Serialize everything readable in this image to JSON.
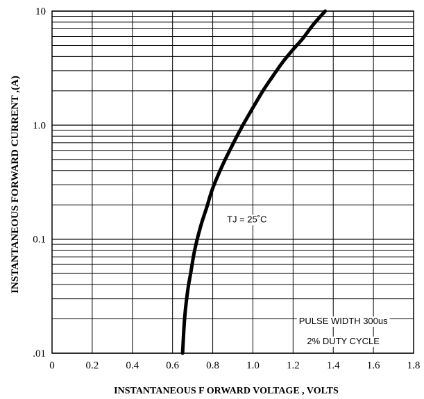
{
  "chart_data": {
    "type": "line",
    "title": "",
    "xlabel": "INSTANTANEOUS F ORWARD VOLTAGE , VOLTS",
    "ylabel": "INSTANTANEOUS  FORWARD CURRENT ,(A)",
    "x_scale": "linear",
    "y_scale": "log",
    "xlim": [
      0,
      1.8
    ],
    "ylim": [
      0.01,
      10
    ],
    "grid": true,
    "x_ticks": [
      0,
      0.2,
      0.4,
      0.6,
      0.8,
      1.0,
      1.2,
      1.4,
      1.6,
      1.8
    ],
    "x_tick_labels": [
      "0",
      "0.2",
      "0.4",
      "0.6",
      "0.8",
      "1.0",
      "1.2",
      "1.4",
      "1.6",
      "1.8"
    ],
    "y_ticks": [
      0.01,
      0.1,
      1,
      10
    ],
    "y_tick_labels": [
      ".01",
      "0.1",
      "1.0",
      "10"
    ],
    "series": [
      {
        "x": [
          0.65,
          0.66,
          0.675,
          0.69,
          0.71,
          0.74,
          0.77,
          0.8,
          0.85,
          0.9,
          0.95,
          1.0,
          1.05,
          1.1,
          1.15,
          1.2,
          1.25,
          1.3,
          1.36
        ],
        "y": [
          0.01,
          0.02,
          0.035,
          0.05,
          0.08,
          0.13,
          0.19,
          0.28,
          0.45,
          0.68,
          1.0,
          1.42,
          2.0,
          2.7,
          3.6,
          4.6,
          5.8,
          7.6,
          10.0
        ]
      }
    ],
    "annotations": [
      {
        "text": "TJ = 25˚C",
        "x": 0.97,
        "y": 0.14
      },
      {
        "text": "PULSE WIDTH 300us",
        "x": 1.45,
        "y": 0.018
      },
      {
        "text": "2% DUTY CYCLE",
        "x": 1.45,
        "y": 0.012
      }
    ]
  }
}
